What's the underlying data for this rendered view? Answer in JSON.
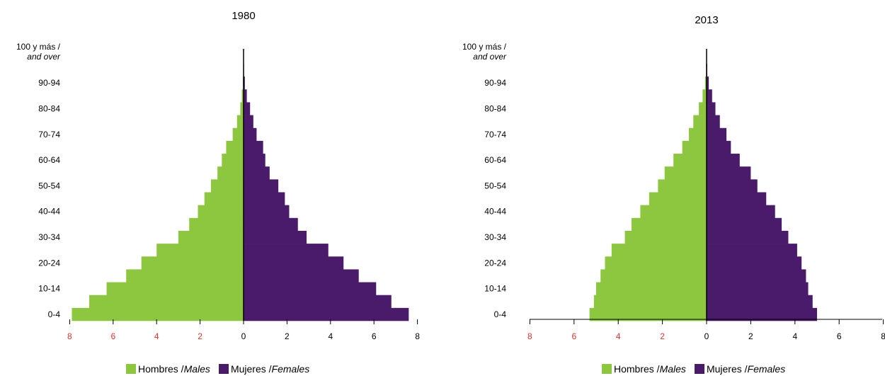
{
  "chart_data": [
    {
      "type": "bar",
      "orientation": "horizontal",
      "title": "1980",
      "categories": [
        "0-4",
        "5-9",
        "10-14",
        "15-19",
        "20-24",
        "25-29",
        "30-34",
        "35-39",
        "40-44",
        "45-49",
        "50-54",
        "55-59",
        "60-64",
        "65-69",
        "70-74",
        "75-79",
        "80-84",
        "85-89",
        "90-94",
        "95-99",
        "100 y más / and over"
      ],
      "category_tick_labels": [
        {
          "category": "0-4",
          "text": "0-4"
        },
        {
          "category": "10-14",
          "text": "10-14"
        },
        {
          "category": "20-24",
          "text": "20-24"
        },
        {
          "category": "30-34",
          "text": "30-34"
        },
        {
          "category": "40-44",
          "text": "40-44"
        },
        {
          "category": "50-54",
          "text": "50-54"
        },
        {
          "category": "60-64",
          "text": "60-64"
        },
        {
          "category": "70-74",
          "text": "70-74"
        },
        {
          "category": "80-84",
          "text": "80-84"
        },
        {
          "category": "90-94",
          "text": "90-94"
        },
        {
          "category": "100 y más / and over",
          "text": "100 y más /",
          "text2": "and over"
        }
      ],
      "series": [
        {
          "name": "Hombres / Males",
          "color": "#8dc63f",
          "side": "left",
          "values": [
            7.9,
            7.1,
            6.3,
            5.4,
            4.7,
            4.0,
            3.0,
            2.5,
            2.1,
            1.8,
            1.5,
            1.2,
            1.0,
            0.8,
            0.5,
            0.3,
            0.15,
            0.08,
            0.03,
            0.01,
            0.0
          ]
        },
        {
          "name": "Mujeres / Females",
          "color": "#4a1a6b",
          "side": "right",
          "values": [
            7.6,
            6.8,
            6.1,
            5.3,
            4.6,
            3.9,
            2.9,
            2.5,
            2.1,
            1.9,
            1.6,
            1.2,
            1.0,
            0.9,
            0.6,
            0.45,
            0.3,
            0.15,
            0.06,
            0.02,
            0.0
          ]
        }
      ],
      "x_axis": {
        "range": [
          -8,
          8
        ],
        "ticks": [
          -8,
          -6,
          -4,
          -2,
          0,
          2,
          4,
          6,
          8
        ],
        "tick_labels": [
          "8",
          "6",
          "4",
          "2",
          "0",
          "2",
          "4",
          "6",
          "8"
        ],
        "left_tick_color": "#e8302a",
        "right_tick_color": "#000000"
      },
      "grid": false,
      "legend_position": "bottom"
    },
    {
      "type": "bar",
      "orientation": "horizontal",
      "title": "2013",
      "categories": [
        "0-4",
        "5-9",
        "10-14",
        "15-19",
        "20-24",
        "25-29",
        "30-34",
        "35-39",
        "40-44",
        "45-49",
        "50-54",
        "55-59",
        "60-64",
        "65-69",
        "70-74",
        "75-79",
        "80-84",
        "85-89",
        "90-94",
        "95-99",
        "100 y más / and over"
      ],
      "category_tick_labels": [
        {
          "category": "0-4",
          "text": "0-4"
        },
        {
          "category": "10-14",
          "text": "10-14"
        },
        {
          "category": "20-24",
          "text": "20-24"
        },
        {
          "category": "30-34",
          "text": "30-34"
        },
        {
          "category": "40-44",
          "text": "40-44"
        },
        {
          "category": "50-54",
          "text": "50-54"
        },
        {
          "category": "60-64",
          "text": "60-64"
        },
        {
          "category": "70-74",
          "text": "70-74"
        },
        {
          "category": "80-84",
          "text": "80-84"
        },
        {
          "category": "90-94",
          "text": "90-94"
        },
        {
          "category": "100 y más / and over",
          "text": "100 y más /",
          "text2": "and over"
        }
      ],
      "series": [
        {
          "name": "Hombres / Males",
          "color": "#8dc63f",
          "side": "left",
          "values": [
            5.3,
            5.1,
            5.0,
            4.8,
            4.6,
            4.3,
            3.7,
            3.4,
            3.0,
            2.6,
            2.2,
            1.9,
            1.5,
            1.1,
            0.8,
            0.6,
            0.35,
            0.18,
            0.07,
            0.02,
            0.0
          ]
        },
        {
          "name": "Mujeres / Females",
          "color": "#4a1a6b",
          "side": "right",
          "values": [
            5.0,
            4.8,
            4.6,
            4.5,
            4.3,
            4.1,
            3.7,
            3.4,
            3.1,
            2.7,
            2.3,
            2.0,
            1.5,
            1.1,
            0.9,
            0.6,
            0.4,
            0.25,
            0.1,
            0.03,
            0.0
          ]
        }
      ],
      "x_axis": {
        "range": [
          -8,
          8
        ],
        "ticks": [
          -8,
          -6,
          -4,
          -2,
          0,
          2,
          4,
          6,
          8
        ],
        "tick_labels": [
          "8",
          "6",
          "4",
          "2",
          "0",
          "2",
          "4",
          "6",
          "8"
        ],
        "left_tick_color": "#e8302a",
        "right_tick_color": "#000000"
      },
      "grid": false,
      "legend_position": "bottom"
    }
  ],
  "legend": {
    "males_prefix": "Hombres / ",
    "males_italic": "Males",
    "females_prefix": "Mujeres / ",
    "females_italic": "Females"
  }
}
